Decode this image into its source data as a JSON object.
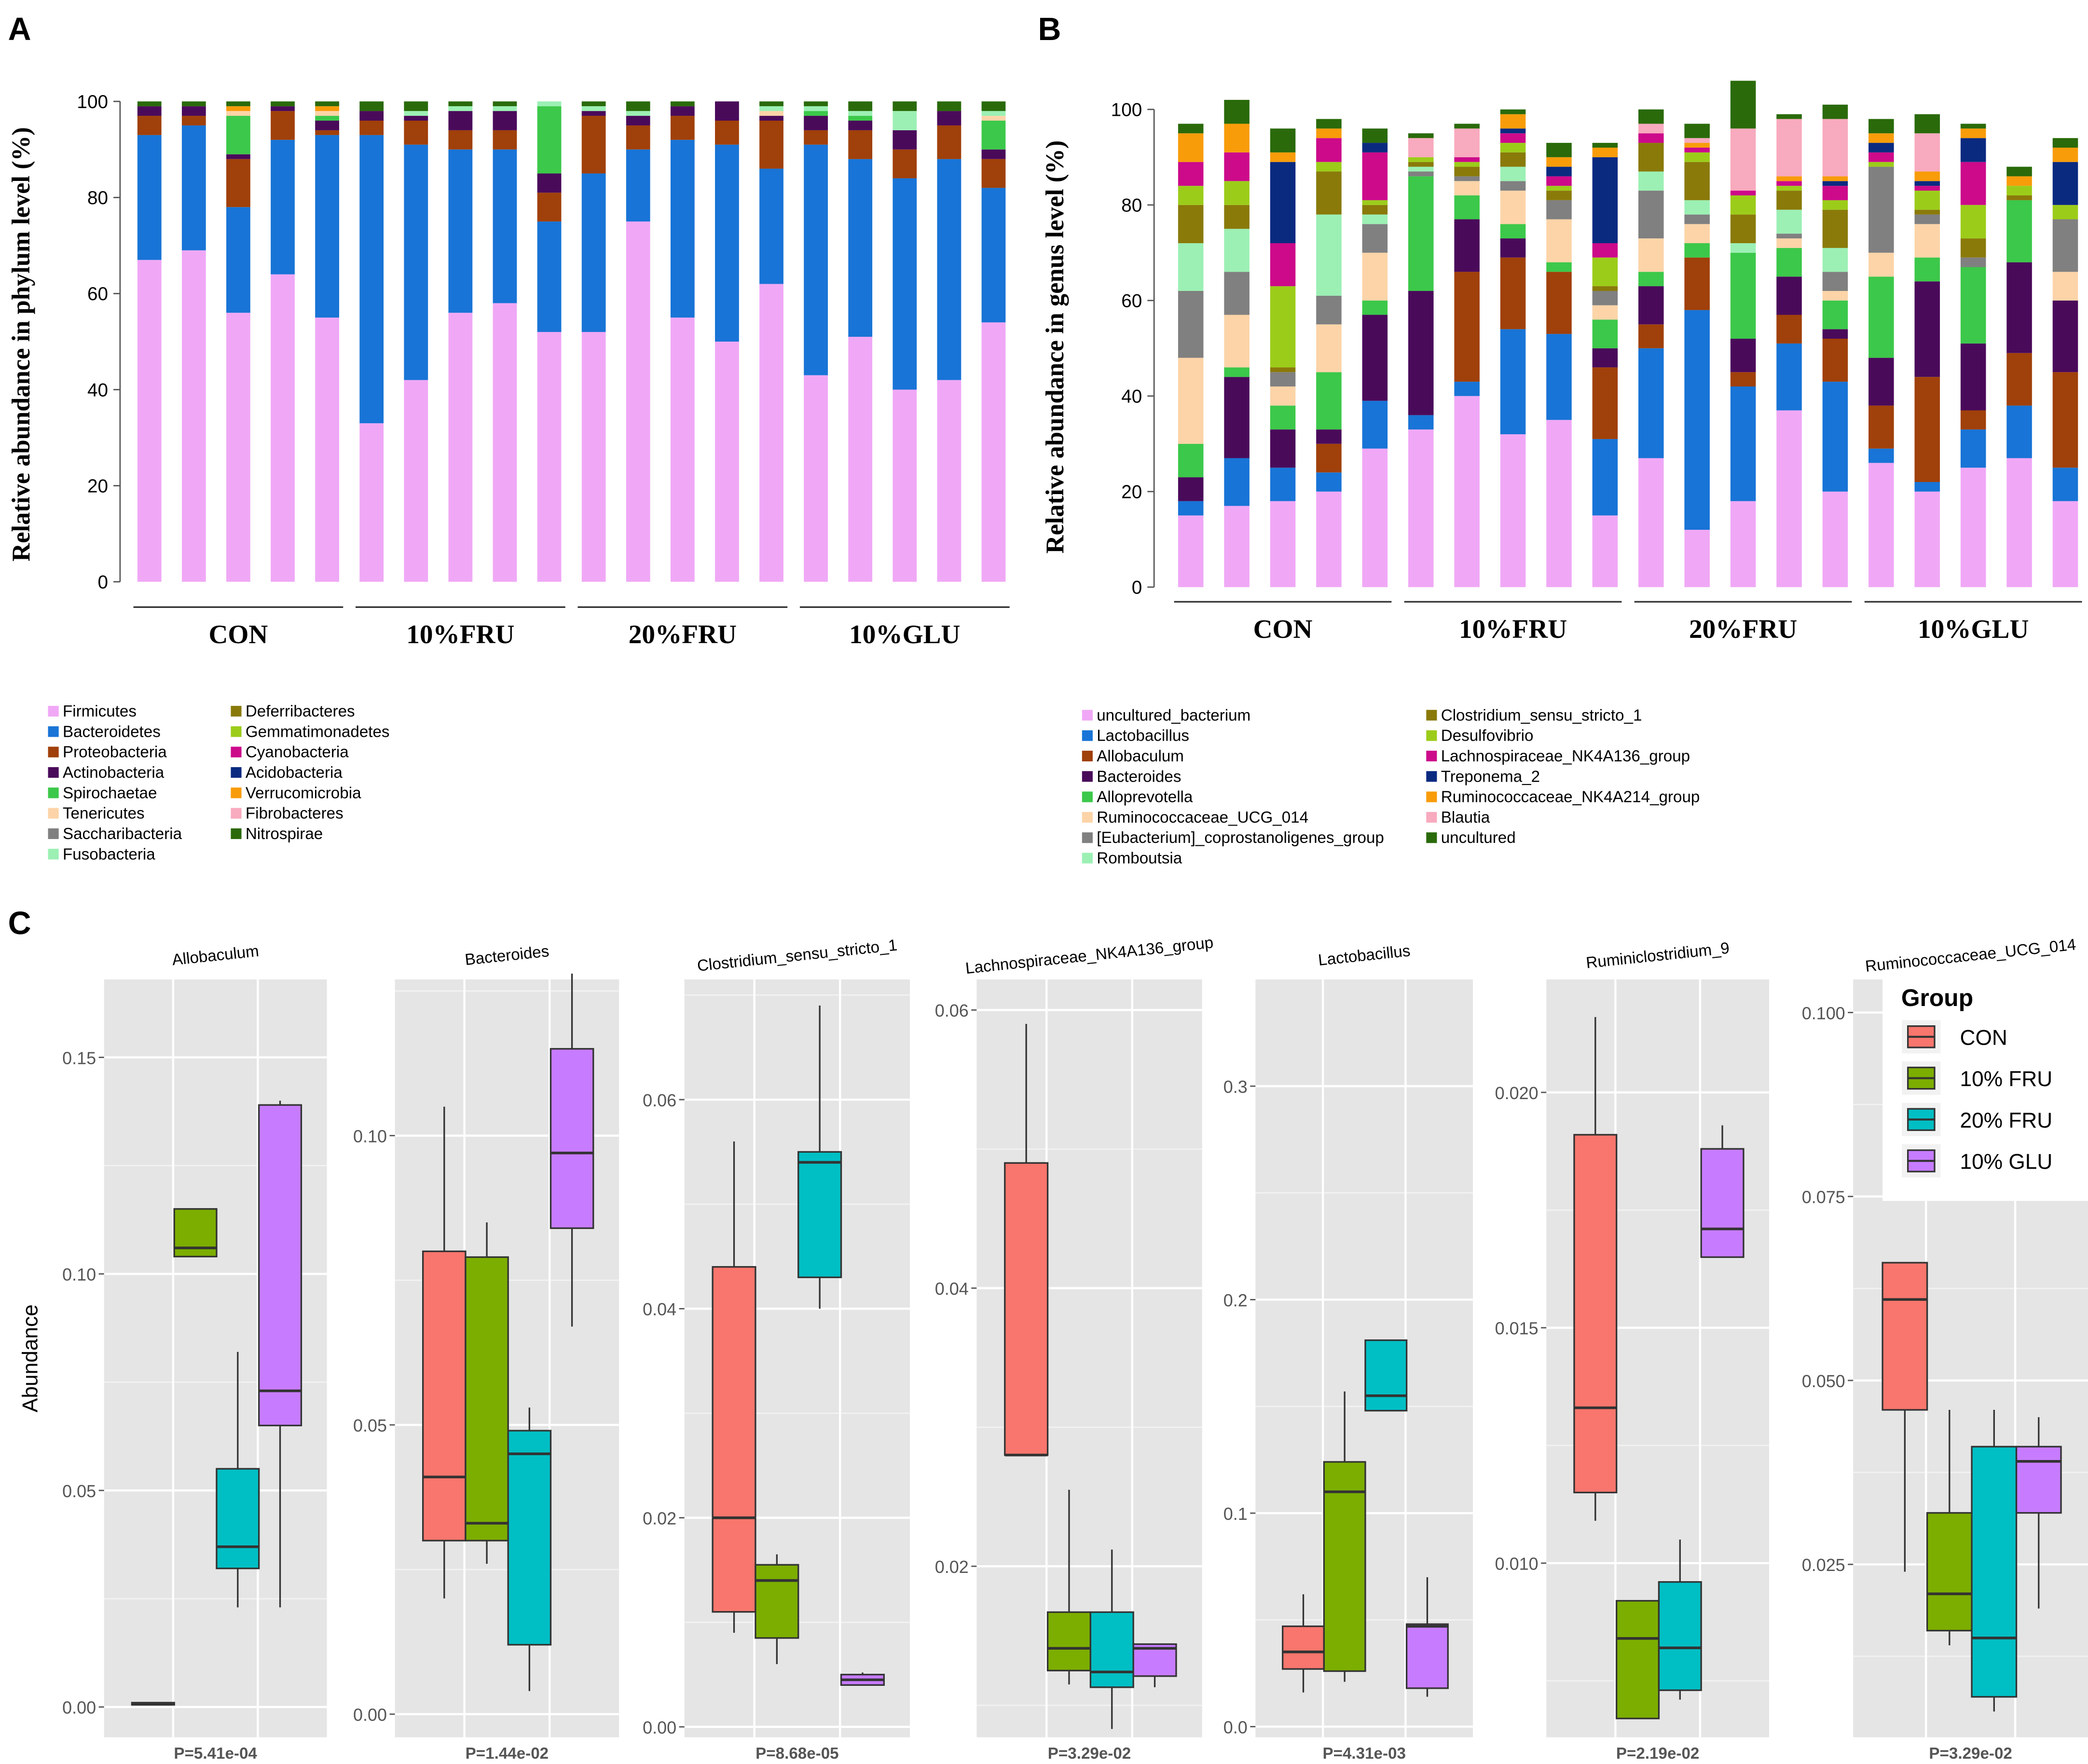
{
  "panels": {
    "a": "A",
    "b": "B",
    "c": "C"
  },
  "chart_data": [
    {
      "id": "A",
      "type": "bar",
      "stacked": true,
      "ylabel": "Relative abundance in phylum level (%)",
      "ylim": [
        0,
        100
      ],
      "yticks": [
        "0",
        "20",
        "40",
        "60",
        "80",
        "100"
      ],
      "groups": [
        "CON",
        "10%FRU",
        "20%FRU",
        "10%GLU"
      ],
      "samples_per_group": 5,
      "legend_names": [
        "Firmicutes",
        "Bacteroidetes",
        "Proteobacteria",
        "Actinobacteria",
        "Spirochaetae",
        "Tenericutes",
        "Saccharibacteria",
        "Fusobacteria",
        "Deferribacteres",
        "Gemmatimonadetes",
        "Cyanobacteria",
        "Acidobacteria",
        "Verrucomicrobia",
        "Fibrobacteres",
        "Nitrospirae"
      ],
      "colors": [
        "#f0a8f6",
        "#1874d6",
        "#a0400a",
        "#4a0a5a",
        "#3cc84a",
        "#fcd4a8",
        "#808080",
        "#9cf0b4",
        "#8a7a0a",
        "#9ccc1a",
        "#cc0a8a",
        "#0a2a80",
        "#f89c0a",
        "#f8aabe",
        "#2a6a0a"
      ],
      "series_values": [
        [
          67,
          69,
          56,
          64,
          55,
          33,
          42,
          56,
          58,
          52,
          52,
          75,
          55,
          50,
          62,
          43,
          51,
          40,
          42,
          54
        ],
        [
          26,
          26,
          22,
          28,
          38,
          60,
          49,
          34,
          32,
          23,
          33,
          15,
          37,
          41,
          24,
          48,
          37,
          44,
          46,
          28
        ],
        [
          4,
          2,
          10,
          6,
          1,
          3,
          5,
          4,
          4,
          6,
          12,
          5,
          5,
          5,
          10,
          3,
          6,
          6,
          7,
          6
        ],
        [
          2,
          2,
          1,
          1,
          2,
          2,
          1,
          4,
          4,
          4,
          1,
          2,
          2,
          4,
          1,
          3,
          2,
          4,
          3,
          2
        ],
        [
          0,
          0,
          8,
          0,
          1,
          0,
          0,
          0,
          0,
          14,
          0,
          0,
          0,
          0,
          0,
          1,
          1,
          0,
          0,
          6
        ],
        [
          0,
          0,
          1,
          0,
          1,
          0,
          0,
          0,
          0,
          0,
          0,
          0,
          0,
          0,
          1,
          0,
          0,
          0,
          0,
          1
        ],
        [
          0,
          0,
          0,
          0,
          0,
          0,
          0,
          0,
          0,
          0,
          0,
          0,
          0,
          0,
          0,
          0,
          0,
          0,
          0,
          0
        ],
        [
          0,
          0,
          0,
          0,
          0,
          0,
          1,
          1,
          1,
          1,
          1,
          1,
          0,
          0,
          1,
          1,
          1,
          4,
          0,
          1
        ],
        [
          0,
          0,
          0,
          0,
          0,
          0,
          0,
          0,
          0,
          0,
          0,
          0,
          0,
          0,
          0,
          0,
          0,
          0,
          0,
          0
        ],
        [
          0,
          0,
          0,
          0,
          0,
          0,
          0,
          0,
          0,
          0,
          0,
          0,
          0,
          0,
          0,
          0,
          0,
          0,
          0,
          0
        ],
        [
          0,
          0,
          0,
          0,
          0,
          0,
          0,
          0,
          0,
          0,
          0,
          0,
          0,
          0,
          0,
          0,
          0,
          0,
          0,
          0
        ],
        [
          0,
          0,
          0,
          0,
          0,
          0,
          0,
          0,
          0,
          0,
          0,
          0,
          0,
          0,
          0,
          0,
          0,
          0,
          0,
          0
        ],
        [
          0,
          0,
          1,
          0,
          1,
          0,
          0,
          0,
          0,
          0,
          0,
          0,
          0,
          0,
          0,
          0,
          0,
          0,
          0,
          0
        ],
        [
          0,
          0,
          0,
          0,
          0,
          0,
          0,
          0,
          0,
          0,
          0,
          0,
          0,
          0,
          0,
          0,
          0,
          0,
          0,
          0
        ],
        [
          1,
          1,
          1,
          1,
          1,
          2,
          2,
          1,
          1,
          0,
          1,
          2,
          1,
          0,
          1,
          1,
          2,
          2,
          2,
          2
        ]
      ]
    },
    {
      "id": "B",
      "type": "bar",
      "stacked": true,
      "ylabel": "Relative abundance in genus level (%)",
      "ylim": [
        0,
        100
      ],
      "yticks": [
        "0",
        "20",
        "40",
        "60",
        "80",
        "100"
      ],
      "groups": [
        "CON",
        "10%FRU",
        "20%FRU",
        "10%GLU"
      ],
      "samples_per_group": 5,
      "legend_names": [
        "uncultured_bacterium",
        "Lactobacillus",
        "Allobaculum",
        "Bacteroides",
        "Alloprevotella",
        "Ruminococcaceae_UCG_014",
        "[Eubacterium]_coprostanoligenes_group",
        "Romboutsia",
        "Clostridium_sensu_stricto_1",
        "Desulfovibrio",
        "Lachnospiraceae_NK4A136_group",
        "Treponema_2",
        "Ruminococcaceae_NK4A214_group",
        "Blautia",
        "uncultured"
      ],
      "colors": [
        "#f0a8f6",
        "#1874d6",
        "#a0400a",
        "#4a0a5a",
        "#3cc84a",
        "#fcd4a8",
        "#808080",
        "#9cf0b4",
        "#8a7a0a",
        "#9ccc1a",
        "#cc0a8a",
        "#0a2a80",
        "#f89c0a",
        "#f8aabe",
        "#2a6a0a"
      ],
      "series_values": [
        [
          15,
          17,
          18,
          20,
          29,
          33,
          40,
          32,
          35,
          15,
          27,
          12,
          18,
          37,
          20,
          26,
          20,
          25,
          27,
          18
        ],
        [
          3,
          10,
          7,
          4,
          10,
          3,
          3,
          22,
          18,
          16,
          23,
          46,
          24,
          14,
          23,
          3,
          2,
          8,
          11,
          7
        ],
        [
          0,
          0,
          0,
          6,
          0,
          0,
          23,
          15,
          13,
          15,
          5,
          11,
          3,
          6,
          9,
          9,
          22,
          4,
          11,
          20
        ],
        [
          5,
          17,
          8,
          3,
          18,
          26,
          11,
          4,
          0,
          4,
          8,
          0,
          7,
          8,
          2,
          10,
          20,
          14,
          19,
          15
        ],
        [
          7,
          2,
          5,
          12,
          3,
          24,
          5,
          3,
          2,
          6,
          3,
          3,
          18,
          6,
          6,
          17,
          5,
          16,
          13,
          0
        ],
        [
          18,
          11,
          4,
          10,
          10,
          0,
          3,
          7,
          9,
          3,
          7,
          4,
          0,
          2,
          2,
          5,
          7,
          0,
          0,
          6
        ],
        [
          14,
          9,
          3,
          6,
          6,
          1,
          1,
          2,
          4,
          3,
          10,
          2,
          0,
          1,
          4,
          18,
          2,
          2,
          0,
          11
        ],
        [
          10,
          9,
          0,
          17,
          2,
          1,
          0,
          3,
          0,
          0,
          4,
          3,
          2,
          5,
          5,
          0,
          0,
          0,
          0,
          0
        ],
        [
          8,
          5,
          1,
          9,
          2,
          1,
          2,
          3,
          2,
          1,
          6,
          8,
          6,
          4,
          8,
          0,
          1,
          4,
          1,
          0
        ],
        [
          4,
          5,
          17,
          2,
          1,
          1,
          1,
          2,
          1,
          6,
          0,
          2,
          4,
          1,
          2,
          1,
          4,
          7,
          2,
          3
        ],
        [
          5,
          6,
          9,
          5,
          10,
          0,
          1,
          2,
          2,
          3,
          2,
          1,
          1,
          1,
          3,
          2,
          1,
          9,
          0,
          0
        ],
        [
          0,
          0,
          17,
          0,
          2,
          0,
          0,
          1,
          2,
          18,
          0,
          0,
          0,
          0,
          1,
          2,
          1,
          5,
          0,
          9
        ],
        [
          6,
          6,
          2,
          2,
          0,
          0,
          0,
          3,
          2,
          2,
          0,
          1,
          0,
          1,
          1,
          2,
          2,
          2,
          2,
          3
        ],
        [
          0,
          0,
          0,
          0,
          0,
          4,
          6,
          0,
          0,
          0,
          2,
          1,
          13,
          12,
          12,
          0,
          8,
          0,
          0,
          0
        ],
        [
          2,
          5,
          5,
          2,
          3,
          1,
          1,
          1,
          3,
          1,
          3,
          3,
          10,
          1,
          3,
          3,
          4,
          1,
          2,
          2
        ]
      ]
    },
    {
      "id": "C",
      "type": "box",
      "ylabel": "Abundance",
      "legend_title": "Group",
      "legend_labels": [
        "CON",
        "10% FRU",
        "20% FRU",
        "10% GLU"
      ],
      "colors": [
        "#f8766d",
        "#7cae00",
        "#00bfc4",
        "#c77cff"
      ],
      "facets": [
        {
          "title": "Allobaculum",
          "p": "P=5.41e-04",
          "ylim": [
            -0.007,
            0.168
          ],
          "ticks": [
            0,
            0.05,
            0.1,
            0.15
          ],
          "tick_labels": [
            "0.00",
            "0.05",
            "0.10",
            "0.15"
          ],
          "boxes": [
            [
              0.0005,
              0.0005,
              0.0008,
              0.001,
              0.001
            ],
            [
              0.104,
              0.104,
              0.106,
              0.115,
              0.115
            ],
            [
              0.023,
              0.032,
              0.037,
              0.055,
              0.082
            ],
            [
              0.023,
              0.065,
              0.073,
              0.139,
              0.14
            ]
          ]
        },
        {
          "title": "Bacteroides",
          "p": "P=1.44e-02",
          "ylim": [
            -0.004,
            0.127
          ],
          "ticks": [
            0,
            0.05,
            0.1
          ],
          "tick_labels": [
            "0.00",
            "0.05",
            "0.10"
          ],
          "boxes": [
            [
              0.02,
              0.03,
              0.041,
              0.08,
              0.105
            ],
            [
              0.026,
              0.03,
              0.033,
              0.079,
              0.085
            ],
            [
              0.004,
              0.012,
              0.045,
              0.049,
              0.053
            ],
            [
              0.067,
              0.084,
              0.097,
              0.115,
              0.128
            ]
          ]
        },
        {
          "title": "Clostridium_sensu_stricto_1",
          "p": "P=8.68e-05",
          "ylim": [
            -0.001,
            0.0715
          ],
          "ticks": [
            0,
            0.02,
            0.04,
            0.06
          ],
          "tick_labels": [
            "0.00",
            "0.02",
            "0.04",
            "0.06"
          ],
          "boxes": [
            [
              0.009,
              0.011,
              0.02,
              0.044,
              0.056
            ],
            [
              0.006,
              0.0085,
              0.014,
              0.0155,
              0.0165
            ],
            [
              0.04,
              0.043,
              0.054,
              0.055,
              0.069
            ],
            [
              0.004,
              0.004,
              0.0045,
              0.005,
              0.0052
            ]
          ]
        },
        {
          "title": "Lachnospiraceae_NK4A136_group",
          "p": "P=3.29e-02",
          "ylim": [
            0.0077,
            0.0622
          ],
          "ticks": [
            0.02,
            0.04,
            0.06
          ],
          "tick_labels": [
            "0.02",
            "0.04",
            "0.06"
          ],
          "boxes": [
            [
              0.028,
              0.028,
              0.028,
              0.049,
              0.059
            ],
            [
              0.0115,
              0.0125,
              0.0141,
              0.0167,
              0.0255
            ],
            [
              0.0083,
              0.0113,
              0.0124,
              0.0167,
              0.0212
            ],
            [
              0.0113,
              0.0121,
              0.0141,
              0.0144,
              0.0144
            ]
          ]
        },
        {
          "title": "Lactobacillus",
          "p": "P=4.31e-03",
          "ylim": [
            -0.005,
            0.35
          ],
          "ticks": [
            0,
            0.1,
            0.2,
            0.3
          ],
          "tick_labels": [
            "0.0",
            "0.1",
            "0.2",
            "0.3"
          ],
          "boxes": [
            [
              0.016,
              0.027,
              0.035,
              0.047,
              0.062
            ],
            [
              0.021,
              0.026,
              0.11,
              0.124,
              0.157
            ],
            [
              0.148,
              0.148,
              0.155,
              0.181,
              0.181
            ],
            [
              0.014,
              0.018,
              0.047,
              0.048,
              0.07
            ]
          ]
        },
        {
          "title": "Ruminiclostridium_9",
          "p": "P=2.19e-02",
          "ylim": [
            0.0063,
            0.0224
          ],
          "ticks": [
            0.01,
            0.015,
            0.02
          ],
          "tick_labels": [
            "0.010",
            "0.015",
            "0.020"
          ],
          "boxes": [
            [
              0.0109,
              0.0115,
              0.0133,
              0.0191,
              0.0216
            ],
            [
              0.0067,
              0.0067,
              0.0084,
              0.0092,
              0.0092
            ],
            [
              0.0071,
              0.0073,
              0.0082,
              0.0096,
              0.0105
            ],
            [
              0.0165,
              0.0165,
              0.0171,
              0.0188,
              0.0193
            ]
          ]
        },
        {
          "title": "Ruminococcaceae_UCG_014",
          "p": "P=3.29e-02",
          "ylim": [
            0.0015,
            0.1045
          ],
          "ticks": [
            0.025,
            0.05,
            0.075,
            0.1
          ],
          "tick_labels": [
            "0.025",
            "0.050",
            "0.075",
            "0.100"
          ],
          "boxes": [
            [
              0.024,
              0.046,
              0.061,
              0.066,
              0.066
            ],
            [
              0.014,
              0.016,
              0.021,
              0.032,
              0.046
            ],
            [
              0.005,
              0.007,
              0.015,
              0.041,
              0.046
            ],
            [
              0.019,
              0.032,
              0.039,
              0.041,
              0.045
            ]
          ]
        }
      ]
    }
  ]
}
